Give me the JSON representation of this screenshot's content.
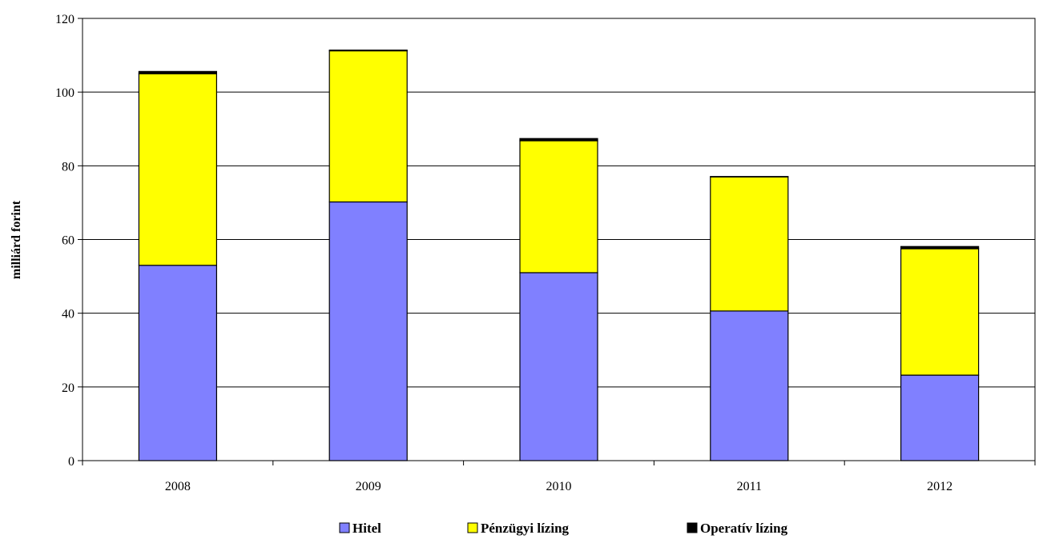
{
  "chart_data": {
    "type": "bar",
    "stacked": true,
    "categories": [
      "2008",
      "2009",
      "2010",
      "2011",
      "2012"
    ],
    "series": [
      {
        "name": "Hitel",
        "color": "#8080FF",
        "values": [
          53,
          70.2,
          51,
          40.6,
          23.2
        ]
      },
      {
        "name": "Pénzügyi lízing",
        "color": "#FFFF00",
        "values": [
          52,
          41,
          35.8,
          36.4,
          34.3
        ]
      },
      {
        "name": "Operatív lízing",
        "color": "#000000",
        "values": [
          0.6,
          0.2,
          0.6,
          0.1,
          0.6
        ]
      }
    ],
    "ylabel": "milliárd forint",
    "ylim": [
      0,
      120
    ],
    "yticks": [
      "0",
      "20",
      "40",
      "60",
      "80",
      "100",
      "120"
    ],
    "grid": true,
    "legend": "bottom-center"
  }
}
